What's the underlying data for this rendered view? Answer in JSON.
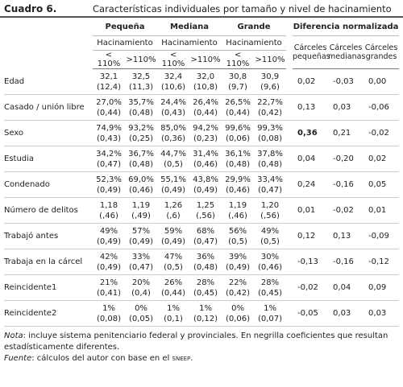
{
  "header": {
    "number": "Cuadro 6.",
    "title": "Características individuales por tamaño y nivel de hacinamiento"
  },
  "table": {
    "groups": [
      "Pequeña",
      "Mediana",
      "Grande"
    ],
    "crowding_label": "Hacinamiento",
    "levels": [
      "< 110%",
      ">110%"
    ],
    "diff_header": "Diferencia normalizada",
    "diff_columns": [
      "Cárceles pequeñas",
      "Cárceles medianas",
      "Cárceles grandes"
    ],
    "bold_cells": [
      "table.rows.2.diff.0"
    ],
    "rows": [
      {
        "label": "Edad",
        "cells": [
          [
            "32,1",
            "(12,4)"
          ],
          [
            "32,5",
            "(11,3)"
          ],
          [
            "32,4",
            "(10,6)"
          ],
          [
            "32,0",
            "(10,8)"
          ],
          [
            "30,8",
            "(9,7)"
          ],
          [
            "30,9",
            "(9,6)"
          ]
        ],
        "diff": [
          "0,02",
          "-0,03",
          "0,00"
        ]
      },
      {
        "label": "Casado / unión libre",
        "cells": [
          [
            "27,0%",
            "(0,44)"
          ],
          [
            "35,7%",
            "(0,48)"
          ],
          [
            "24,4%",
            "(0,43)"
          ],
          [
            "26,4%",
            "(0,44)"
          ],
          [
            "26,5%",
            "(0,44)"
          ],
          [
            "22,7%",
            "(0,42)"
          ]
        ],
        "diff": [
          "0,13",
          "0,03",
          "-0,06"
        ]
      },
      {
        "label": "Sexo",
        "cells": [
          [
            "74,9%",
            "(0,43)"
          ],
          [
            "93,2%",
            "(0,25)"
          ],
          [
            "85,0%",
            "(0,36)"
          ],
          [
            "94,2%",
            "(0,23)"
          ],
          [
            "99,6%",
            "(0,06)"
          ],
          [
            "99,3%",
            "(0,08)"
          ]
        ],
        "diff": [
          "0,36",
          "0,21",
          "-0,02"
        ]
      },
      {
        "label": "Estudia",
        "cells": [
          [
            "34,2%",
            "(0,47)"
          ],
          [
            "36,7%",
            "(0,48)"
          ],
          [
            "44,7%",
            "(0,5)"
          ],
          [
            "31,4%",
            "(0,46)"
          ],
          [
            "36,1%",
            "(0,48)"
          ],
          [
            "37,8%",
            "(0,48)"
          ]
        ],
        "diff": [
          "0,04",
          "-0,20",
          "0,02"
        ]
      },
      {
        "label": "Condenado",
        "cells": [
          [
            "52,3%",
            "(0,49)"
          ],
          [
            "69,0%",
            "(0,46)"
          ],
          [
            "55,1%",
            "(0,49)"
          ],
          [
            "43,8%",
            "(0,49)"
          ],
          [
            "29,9%",
            "(0,46)"
          ],
          [
            "33,4%",
            "(0,47)"
          ]
        ],
        "diff": [
          "0,24",
          "-0,16",
          "0,05"
        ]
      },
      {
        "label": "Número de delitos",
        "cells": [
          [
            "1,18",
            "(,46)"
          ],
          [
            "1,19",
            "(,49)"
          ],
          [
            "1,26",
            "(,6)"
          ],
          [
            "1,25",
            "(,56)"
          ],
          [
            "1,19",
            "(,46)"
          ],
          [
            "1,20",
            "(,56)"
          ]
        ],
        "diff": [
          "0,01",
          "-0,02",
          "0,01"
        ]
      },
      {
        "label": "Trabajó antes",
        "cells": [
          [
            "49%",
            "(0,49)"
          ],
          [
            "57%",
            "(0,49)"
          ],
          [
            "59%",
            "(0,49)"
          ],
          [
            "68%",
            "(0,47)"
          ],
          [
            "56%",
            "(0,5)"
          ],
          [
            "49%",
            "(0,5)"
          ]
        ],
        "diff": [
          "0,12",
          "0,13",
          "-0,09"
        ]
      },
      {
        "label": "Trabaja en la cárcel",
        "cells": [
          [
            "42%",
            "(0,49)"
          ],
          [
            "33%",
            "(0,47)"
          ],
          [
            "47%",
            "(0,5)"
          ],
          [
            "36%",
            "(0,48)"
          ],
          [
            "39%",
            "(0,49)"
          ],
          [
            "30%",
            "(0,46)"
          ]
        ],
        "diff": [
          "-0,13",
          "-0,16",
          "-0,12"
        ]
      },
      {
        "label": "Reincidente1",
        "cells": [
          [
            "21%",
            "(0,41)"
          ],
          [
            "20%",
            "(0,4)"
          ],
          [
            "26%",
            "(0,44)"
          ],
          [
            "28%",
            "(0,45)"
          ],
          [
            "22%",
            "(0,42)"
          ],
          [
            "28%",
            "(0,45)"
          ]
        ],
        "diff": [
          "-0,02",
          "0,04",
          "0,09"
        ]
      },
      {
        "label": "Reincidente2",
        "cells": [
          [
            "1%",
            "(0,08)"
          ],
          [
            "0%",
            "(0,05)"
          ],
          [
            "1%",
            "(0,1)"
          ],
          [
            "1%",
            "(0,12)"
          ],
          [
            "0%",
            "(0,06)"
          ],
          [
            "1%",
            "(0,07)"
          ]
        ],
        "diff": [
          "-0,05",
          "0,03",
          "0,03"
        ]
      }
    ]
  },
  "notes": {
    "note": {
      "label": "Nota",
      "text": ": incluye sistema penitenciario federal y provinciales. En negrilla coeficientes que resultan estadísticamente diferentes."
    },
    "source": {
      "label": "Fuente",
      "parts": [
        ": cálculos del autor con base en el ",
        "sneep",
        "."
      ]
    }
  }
}
